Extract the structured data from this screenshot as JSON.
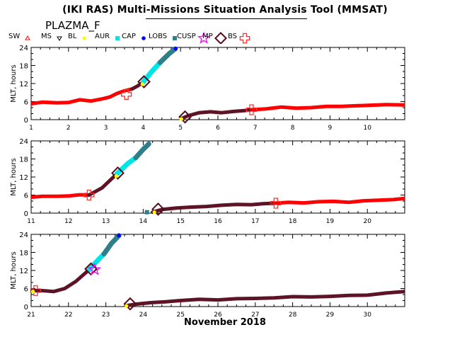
{
  "title": "(IKI RAS) Multi-Missions Situation Analysis Tool (MMSAT)",
  "mission": "PLAZMA_F",
  "legend": [
    {
      "key": "sw",
      "label": "SW",
      "color": "#ff0000",
      "marker": "triangle-up"
    },
    {
      "key": "ms",
      "label": "MS",
      "color": "#000000",
      "marker": "triangle-down"
    },
    {
      "key": "bl",
      "label": "BL",
      "color": "#ffff00",
      "marker": "dot"
    },
    {
      "key": "aur",
      "label": "AUR",
      "color": "#00e5e5",
      "marker": "square"
    },
    {
      "key": "cap",
      "label": "CAP",
      "color": "#0000ff",
      "marker": "dot"
    },
    {
      "key": "lobs",
      "label": "LOBS",
      "color": "#2f7f8a",
      "marker": "square"
    },
    {
      "key": "cusp",
      "label": "CUSP",
      "color": "#ff00ff",
      "marker": "star"
    },
    {
      "key": "mp",
      "label": "MP",
      "color": "#5a0a1e",
      "marker": "diamond"
    },
    {
      "key": "bs",
      "label": "BS",
      "color": "#ff0000",
      "marker": "cross"
    }
  ],
  "colors": {
    "sw": "#ff0000",
    "ms": "#5c1426",
    "aur": "#00e5e5",
    "lobs": "#2f7f8a",
    "cap": "#0000ff",
    "bl": "#ffff00",
    "mp": "#5a0a1e",
    "bs": "#ff2020"
  },
  "chart_data": {
    "type": "line",
    "xlabel": "November 2018",
    "ylabel": "MLT, hours",
    "ylim": [
      0,
      24
    ],
    "yticks": [
      0,
      6,
      12,
      18,
      24
    ],
    "panels": [
      {
        "xlim": [
          1,
          11
        ],
        "xticks": [
          1,
          2,
          3,
          4,
          5,
          6,
          7,
          8,
          9,
          10
        ],
        "segments": [
          {
            "region": "sw",
            "points": [
              [
                1.0,
                5.3
              ],
              [
                1.3,
                5.8
              ],
              [
                1.7,
                5.6
              ],
              [
                2.0,
                5.7
              ],
              [
                2.3,
                6.6
              ],
              [
                2.6,
                6.2
              ],
              [
                2.9,
                6.9
              ],
              [
                3.1,
                7.5
              ],
              [
                3.3,
                8.7
              ],
              [
                3.5,
                9.6
              ],
              [
                3.7,
                10.2
              ]
            ]
          },
          {
            "region": "ms",
            "points": [
              [
                3.7,
                10.2
              ],
              [
                3.85,
                11.2
              ],
              [
                4.0,
                12.5
              ]
            ]
          },
          {
            "region": "aur",
            "points": [
              [
                4.0,
                12.5
              ],
              [
                4.2,
                15.6
              ],
              [
                4.45,
                19.0
              ]
            ]
          },
          {
            "region": "lobs",
            "points": [
              [
                4.45,
                19.0
              ],
              [
                4.7,
                22.0
              ],
              [
                4.85,
                23.5
              ]
            ]
          },
          {
            "region": "ms",
            "points": [
              [
                5.05,
                0.5
              ],
              [
                5.2,
                1.3
              ],
              [
                5.5,
                2.3
              ],
              [
                5.8,
                2.6
              ],
              [
                6.1,
                2.3
              ],
              [
                6.4,
                2.7
              ],
              [
                6.7,
                3.0
              ],
              [
                6.9,
                3.3
              ]
            ]
          },
          {
            "region": "sw",
            "points": [
              [
                6.9,
                3.3
              ],
              [
                7.3,
                3.6
              ],
              [
                7.7,
                4.2
              ],
              [
                8.1,
                3.8
              ],
              [
                8.5,
                4.0
              ],
              [
                8.9,
                4.4
              ],
              [
                9.3,
                4.4
              ],
              [
                9.7,
                4.6
              ],
              [
                10.1,
                4.8
              ],
              [
                10.5,
                5.0
              ],
              [
                11.0,
                4.9
              ]
            ]
          }
        ],
        "markers": [
          {
            "type": "bs",
            "x": 3.55,
            "y": 8.4
          },
          {
            "type": "mp",
            "x": 4.02,
            "y": 12.6
          },
          {
            "type": "bl",
            "x": 3.98,
            "y": 11.8
          },
          {
            "type": "cap",
            "x": 4.87,
            "y": 23.6
          },
          {
            "type": "mp",
            "x": 5.12,
            "y": 0.9
          },
          {
            "type": "bl",
            "x": 5.02,
            "y": 0.2
          },
          {
            "type": "bs",
            "x": 6.9,
            "y": 3.3
          }
        ]
      },
      {
        "xlim": [
          11,
          21
        ],
        "xticks": [
          11,
          12,
          13,
          14,
          15,
          16,
          17,
          18,
          19,
          20
        ],
        "segments": [
          {
            "region": "sw",
            "points": [
              [
                11.0,
                5.3
              ],
              [
                11.3,
                5.6
              ],
              [
                11.7,
                5.6
              ],
              [
                12.0,
                5.7
              ],
              [
                12.3,
                6.1
              ],
              [
                12.55,
                6.0
              ]
            ]
          },
          {
            "region": "ms",
            "points": [
              [
                12.55,
                6.0
              ],
              [
                12.9,
                8.4
              ],
              [
                13.3,
                13.1
              ]
            ]
          },
          {
            "region": "aur",
            "points": [
              [
                13.3,
                13.1
              ],
              [
                13.6,
                16.6
              ],
              [
                13.8,
                18.4
              ]
            ]
          },
          {
            "region": "lobs",
            "points": [
              [
                13.8,
                18.4
              ],
              [
                14.0,
                21.2
              ],
              [
                14.15,
                23.0
              ]
            ]
          },
          {
            "region": "ms",
            "points": [
              [
                14.25,
                0.3
              ],
              [
                14.5,
                1.2
              ],
              [
                14.9,
                1.7
              ],
              [
                15.3,
                2.0
              ],
              [
                15.7,
                2.2
              ],
              [
                16.1,
                2.6
              ],
              [
                16.5,
                2.9
              ],
              [
                16.9,
                2.8
              ],
              [
                17.2,
                3.1
              ],
              [
                17.5,
                3.3
              ]
            ]
          },
          {
            "region": "sw",
            "points": [
              [
                17.5,
                3.3
              ],
              [
                17.9,
                3.6
              ],
              [
                18.3,
                3.4
              ],
              [
                18.7,
                3.8
              ],
              [
                19.1,
                3.9
              ],
              [
                19.5,
                3.6
              ],
              [
                19.9,
                4.1
              ],
              [
                20.3,
                4.3
              ],
              [
                20.7,
                4.5
              ],
              [
                21.0,
                4.9
              ]
            ]
          }
        ],
        "markers": [
          {
            "type": "bs",
            "x": 12.55,
            "y": 6.0
          },
          {
            "type": "mp",
            "x": 13.32,
            "y": 13.3
          },
          {
            "type": "bl",
            "x": 13.28,
            "y": 12.3
          },
          {
            "type": "lobs",
            "x": 14.1,
            "y": 0.3
          },
          {
            "type": "mp",
            "x": 14.4,
            "y": 1.3
          },
          {
            "type": "bl",
            "x": 14.3,
            "y": 0.3
          },
          {
            "type": "bs",
            "x": 17.55,
            "y": 3.3
          }
        ]
      },
      {
        "xlim": [
          21,
          31
        ],
        "xticks": [
          21,
          22,
          23,
          24,
          25,
          26,
          27,
          28,
          29,
          30
        ],
        "segments": [
          {
            "region": "ms",
            "points": [
              [
                21.0,
                5.3
              ],
              [
                21.3,
                5.3
              ],
              [
                21.6,
                5.0
              ],
              [
                21.9,
                6.0
              ],
              [
                22.2,
                8.4
              ],
              [
                22.55,
                12.2
              ]
            ]
          },
          {
            "region": "aur",
            "points": [
              [
                22.55,
                12.2
              ],
              [
                22.8,
                15.6
              ],
              [
                22.95,
                17.5
              ]
            ]
          },
          {
            "region": "lobs",
            "points": [
              [
                22.95,
                17.5
              ],
              [
                23.15,
                21.0
              ],
              [
                23.35,
                23.6
              ]
            ]
          },
          {
            "region": "ms",
            "points": [
              [
                23.55,
                0.3
              ],
              [
                23.8,
                0.8
              ],
              [
                24.2,
                1.3
              ],
              [
                24.6,
                1.6
              ],
              [
                25.0,
                2.0
              ],
              [
                25.5,
                2.4
              ],
              [
                26.0,
                2.2
              ],
              [
                26.5,
                2.6
              ],
              [
                27.0,
                2.7
              ],
              [
                27.5,
                2.9
              ],
              [
                28.0,
                3.3
              ],
              [
                28.5,
                3.2
              ],
              [
                29.0,
                3.4
              ],
              [
                29.5,
                3.7
              ],
              [
                30.0,
                3.8
              ],
              [
                30.5,
                4.5
              ],
              [
                31.0,
                5.0
              ]
            ]
          }
        ],
        "markers": [
          {
            "type": "bs",
            "x": 21.12,
            "y": 5.3
          },
          {
            "type": "bl",
            "x": 21.05,
            "y": 5.0
          },
          {
            "type": "mp",
            "x": 22.6,
            "y": 12.5
          },
          {
            "type": "cusp",
            "x": 22.7,
            "y": 12.3
          },
          {
            "type": "cap",
            "x": 23.35,
            "y": 23.6
          },
          {
            "type": "mp",
            "x": 23.65,
            "y": 0.9
          },
          {
            "type": "bl",
            "x": 23.55,
            "y": 0.2
          }
        ]
      }
    ]
  }
}
